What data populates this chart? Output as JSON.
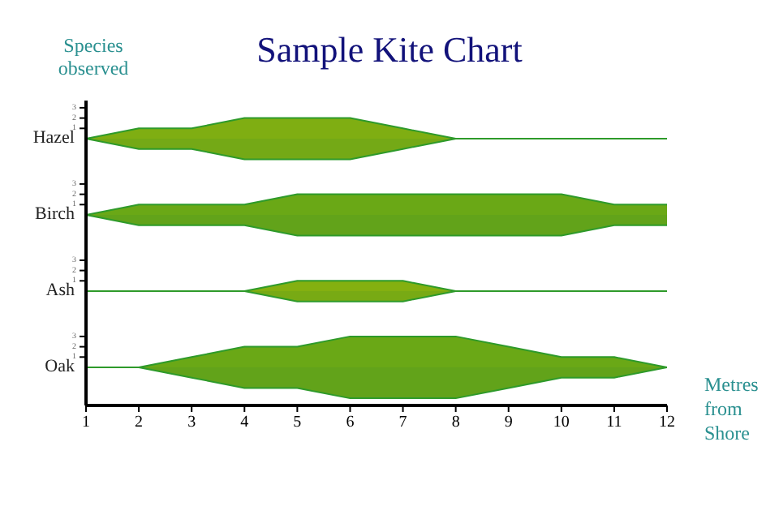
{
  "chart_data": [
    {
      "type": "area",
      "title": "Sample Kite Chart",
      "annotations": [
        "Species observed"
      ],
      "ylabel": "Hazel",
      "x": [
        1,
        2,
        3,
        4,
        5,
        6,
        7,
        8,
        9,
        10,
        11,
        12
      ],
      "xlim": [
        1,
        12
      ],
      "xticks": [
        1,
        2,
        3,
        4,
        5,
        6,
        7,
        8,
        9,
        10,
        11,
        12
      ],
      "ylim": [
        -3.7,
        3.7
      ],
      "yticks": [
        1,
        2,
        3
      ],
      "tick_labels": "y",
      "series": [
        {
          "color": "#7fae12",
          "values": [
            0,
            1,
            1,
            2,
            2,
            2,
            1,
            0,
            0,
            0,
            0,
            0
          ]
        },
        {
          "color": "#74a916",
          "values": [
            0,
            -1,
            -1,
            -2,
            -2,
            -2,
            -1,
            0,
            0,
            0,
            0,
            0
          ]
        }
      ]
    },
    {
      "type": "area",
      "x": [
        1,
        2,
        3,
        4,
        5,
        6,
        7,
        8,
        9,
        10,
        11,
        12
      ],
      "xlim": [
        1,
        12
      ],
      "xticks": [
        1,
        2,
        3,
        4,
        5,
        6,
        7,
        8,
        9,
        10,
        11,
        12
      ],
      "ylabel": "Birch",
      "ylim": [
        -3.7,
        3.7
      ],
      "yticks": [
        1,
        2,
        3
      ],
      "tick_labels": "y",
      "series": [
        {
          "color": "#6aa816",
          "values": [
            0,
            1,
            1,
            1,
            2,
            2,
            2,
            2,
            2,
            2,
            1,
            1
          ]
        },
        {
          "color": "#62a31a",
          "values": [
            0,
            -1,
            -1,
            -1,
            -2,
            -2,
            -2,
            -2,
            -2,
            -2,
            -1,
            -1
          ]
        }
      ]
    },
    {
      "type": "area",
      "x": [
        1,
        2,
        3,
        4,
        5,
        6,
        7,
        8,
        9,
        10,
        11,
        12
      ],
      "xlim": [
        1,
        12
      ],
      "xticks": [
        1,
        2,
        3,
        4,
        5,
        6,
        7,
        8,
        9,
        10,
        11,
        12
      ],
      "ylabel": "Ash",
      "ylim": [
        -3.7,
        3.7
      ],
      "yticks": [
        1,
        2,
        3
      ],
      "tick_labels": "y",
      "series": [
        {
          "color": "#84b010",
          "values": [
            0,
            0,
            0,
            0,
            1,
            1,
            1,
            0,
            0,
            0,
            0,
            0
          ]
        },
        {
          "color": "#78aa14",
          "values": [
            0,
            0,
            0,
            0,
            -1,
            -1,
            -1,
            0,
            0,
            0,
            0,
            0
          ]
        }
      ]
    },
    {
      "type": "area",
      "xlabel": "Metres from Shore",
      "x": [
        1,
        2,
        3,
        4,
        5,
        6,
        7,
        8,
        9,
        10,
        11,
        12
      ],
      "xlim": [
        1,
        12
      ],
      "xticks": [
        1,
        2,
        3,
        4,
        5,
        6,
        7,
        8,
        9,
        10,
        11,
        12
      ],
      "ylabel": "Oak",
      "ylim": [
        -3.7,
        3.7
      ],
      "yticks": [
        1,
        2,
        3
      ],
      "series": [
        {
          "color": "#6aa816",
          "values": [
            0,
            0,
            1,
            2,
            2,
            3,
            3,
            3,
            2,
            1,
            1,
            0
          ]
        },
        {
          "color": "#62a31a",
          "values": [
            0,
            0,
            -1,
            -2,
            -2,
            -3,
            -3,
            -3,
            -2,
            -1,
            -1,
            0
          ]
        }
      ]
    }
  ]
}
